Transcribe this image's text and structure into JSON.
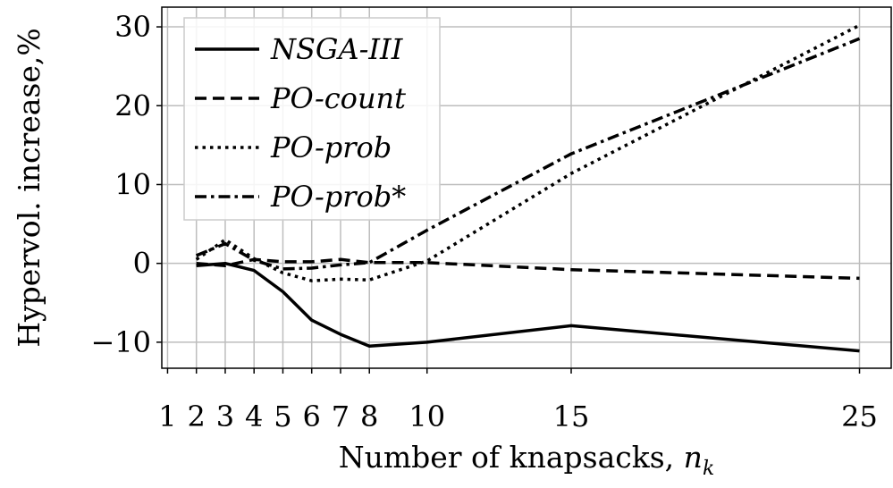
{
  "chart_data": {
    "type": "line",
    "xlabel": "Number of knapsacks, ",
    "xlabel_var": "n",
    "xlabel_sub": "k",
    "ylabel": "Hypervol. increase,%",
    "xlim": [
      0.8,
      26.1
    ],
    "ylim": [
      -13.3,
      32.5
    ],
    "x_ticks": [
      1,
      2,
      3,
      4,
      5,
      6,
      7,
      8,
      10,
      15,
      25
    ],
    "y_ticks": [
      -10,
      0,
      10,
      20,
      30
    ],
    "y_tick_labels": [
      "−10",
      "0",
      "10",
      "20",
      "30"
    ],
    "grid": true,
    "legend_position": "top-left",
    "series": [
      {
        "name": "NSGA-III",
        "dash": "solid",
        "x": [
          2,
          3,
          4,
          5,
          6,
          7,
          8,
          10,
          15,
          25
        ],
        "y": [
          -0.3,
          0.0,
          -0.9,
          -3.6,
          -7.2,
          -9.0,
          -10.5,
          -10.0,
          -7.9,
          -11.1
        ]
      },
      {
        "name": "PO-count",
        "dash": "dashed",
        "x": [
          2,
          3,
          4,
          5,
          6,
          7,
          8,
          10,
          15,
          25
        ],
        "y": [
          0.0,
          -0.3,
          0.5,
          0.2,
          0.2,
          0.5,
          0.1,
          0.1,
          -0.8,
          -1.9
        ]
      },
      {
        "name": "PO-prob",
        "dash": "dotted",
        "x": [
          2,
          3,
          4,
          5,
          6,
          7,
          8,
          10,
          15,
          25
        ],
        "y": [
          0.5,
          3.0,
          0.6,
          -1.2,
          -2.2,
          -2.0,
          -2.1,
          0.3,
          11.4,
          30.2
        ]
      },
      {
        "name": "PO-prob*",
        "dash": "dashdot",
        "x": [
          2,
          3,
          4,
          5,
          6,
          7,
          8,
          10,
          15,
          25
        ],
        "y": [
          1.0,
          2.5,
          0.4,
          -0.7,
          -0.6,
          -0.2,
          0.1,
          4.2,
          13.9,
          28.5
        ]
      }
    ]
  }
}
